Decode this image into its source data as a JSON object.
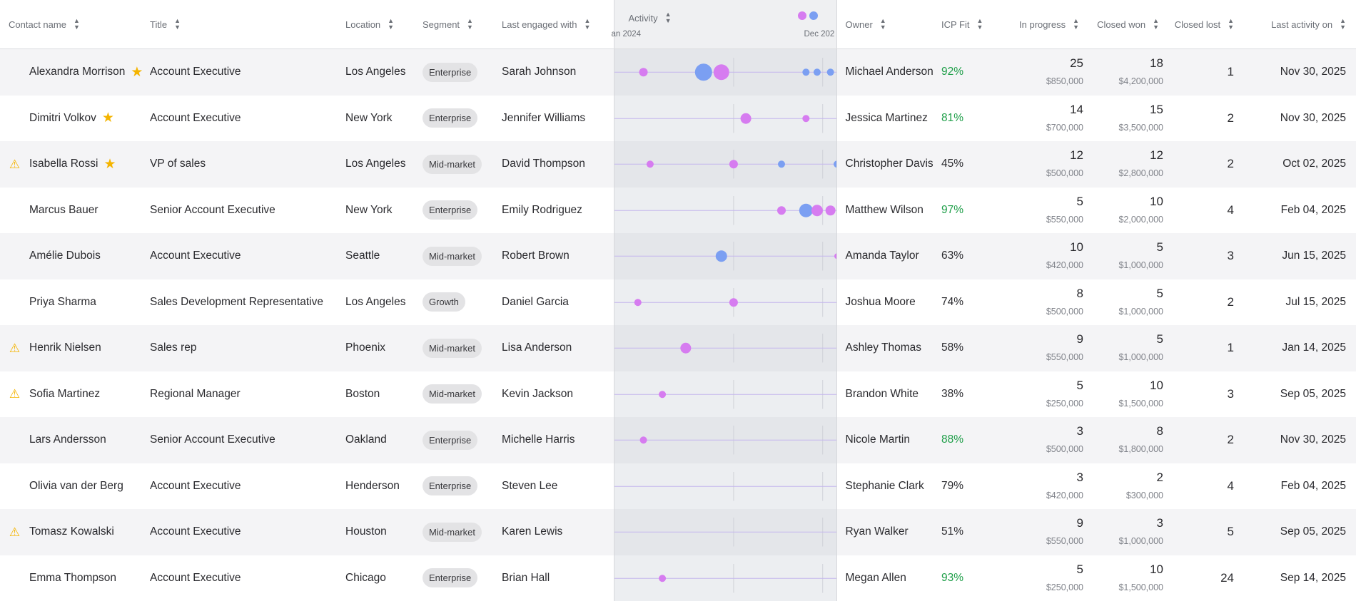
{
  "headers": {
    "contact_name": "Contact name",
    "title": "Title",
    "location": "Location",
    "segment": "Segment",
    "last_engaged": "Last engaged with",
    "activity": "Activity",
    "activity_start": "an 2024",
    "activity_end": "Dec 202",
    "owner": "Owner",
    "icp_fit": "ICP Fit",
    "in_progress": "In progress",
    "closed_won": "Closed won",
    "closed_lost": "Closed lost",
    "last_activity_on": "Last activity on"
  },
  "colors": {
    "purple": "#d67cf0",
    "blue": "#7b9ff2",
    "icp_good": "#1e9e48",
    "warning": "#f4b400",
    "star": "#f4b400"
  },
  "icons": {
    "sort": "sort-icon",
    "warning": "warning-icon",
    "star": "star-icon"
  },
  "rows": [
    {
      "name": "Alexandra Morrison",
      "warning": false,
      "starred": true,
      "title": "Account Executive",
      "location": "Los Angeles",
      "segment": "Enterprise",
      "last_engaged": "Sarah Johnson",
      "owner": "Michael Anderson",
      "icp": "92%",
      "icp_good": true,
      "in_progress": "25",
      "in_progress_amt": "$850,000",
      "closed_won": "18",
      "closed_won_amt": "$4,200,000",
      "closed_lost": "1",
      "last_activity": "Nov 30, 2025",
      "activity": [
        {
          "t": 0.13,
          "s": 6,
          "c": "purple"
        },
        {
          "t": 0.4,
          "s": 12,
          "c": "blue"
        },
        {
          "t": 0.48,
          "s": 11,
          "c": "purple"
        },
        {
          "t": 0.86,
          "s": 5,
          "c": "blue"
        },
        {
          "t": 0.91,
          "s": 5,
          "c": "blue"
        },
        {
          "t": 0.97,
          "s": 5,
          "c": "blue"
        }
      ]
    },
    {
      "name": "Dimitri Volkov",
      "warning": false,
      "starred": true,
      "title": "Account Executive",
      "location": "New York",
      "segment": "Enterprise",
      "last_engaged": "Jennifer Williams",
      "owner": "Jessica Martinez",
      "icp": "81%",
      "icp_good": true,
      "in_progress": "14",
      "in_progress_amt": "$700,000",
      "closed_won": "15",
      "closed_won_amt": "$3,500,000",
      "closed_lost": "2",
      "last_activity": "Nov 30, 2025",
      "activity": [
        {
          "t": 0.59,
          "s": 7.5,
          "c": "purple"
        },
        {
          "t": 0.86,
          "s": 5,
          "c": "purple"
        }
      ]
    },
    {
      "name": "Isabella Rossi",
      "warning": true,
      "starred": true,
      "title": "VP of sales",
      "location": "Los Angeles",
      "segment": "Mid-market",
      "last_engaged": "David Thompson",
      "owner": "Christopher Davis",
      "icp": "45%",
      "icp_good": false,
      "in_progress": "12",
      "in_progress_amt": "$500,000",
      "closed_won": "12",
      "closed_won_amt": "$2,800,000",
      "closed_lost": "2",
      "last_activity": "Oct 02, 2025",
      "activity": [
        {
          "t": 0.16,
          "s": 5,
          "c": "purple"
        },
        {
          "t": 0.535,
          "s": 6,
          "c": "purple"
        },
        {
          "t": 0.75,
          "s": 5,
          "c": "blue"
        },
        {
          "t": 1.0,
          "s": 5,
          "c": "blue"
        }
      ]
    },
    {
      "name": "Marcus Bauer",
      "warning": false,
      "starred": false,
      "title": "Senior Account Executive",
      "location": "New York",
      "segment": "Enterprise",
      "last_engaged": "Emily Rodriguez",
      "owner": "Matthew Wilson",
      "icp": "97%",
      "icp_good": true,
      "in_progress": "5",
      "in_progress_amt": "$550,000",
      "closed_won": "10",
      "closed_won_amt": "$2,000,000",
      "closed_lost": "4",
      "last_activity": "Feb 04, 2025",
      "activity": [
        {
          "t": 0.75,
          "s": 6,
          "c": "purple"
        },
        {
          "t": 0.86,
          "s": 9.5,
          "c": "blue"
        },
        {
          "t": 0.91,
          "s": 8,
          "c": "purple"
        },
        {
          "t": 0.97,
          "s": 7,
          "c": "purple"
        }
      ]
    },
    {
      "name": "Amélie Dubois",
      "warning": false,
      "starred": false,
      "title": "Account Executive",
      "location": "Seattle",
      "segment": "Mid-market",
      "last_engaged": "Robert Brown",
      "owner": "Amanda Taylor",
      "icp": "63%",
      "icp_good": false,
      "in_progress": "10",
      "in_progress_amt": "$420,000",
      "closed_won": "5",
      "closed_won_amt": "$1,000,000",
      "closed_lost": "3",
      "last_activity": "Jun 15, 2025",
      "activity": [
        {
          "t": 0.48,
          "s": 8,
          "c": "blue"
        },
        {
          "t": 1.0,
          "s": 4,
          "c": "purple"
        }
      ]
    },
    {
      "name": "Priya Sharma",
      "warning": false,
      "starred": false,
      "title": "Sales Development Representative",
      "location": "Los Angeles",
      "segment": "Growth",
      "last_engaged": "Daniel Garcia",
      "owner": "Joshua Moore",
      "icp": "74%",
      "icp_good": false,
      "in_progress": "8",
      "in_progress_amt": "$500,000",
      "closed_won": "5",
      "closed_won_amt": "$1,000,000",
      "closed_lost": "2",
      "last_activity": "Jul 15, 2025",
      "activity": [
        {
          "t": 0.105,
          "s": 5,
          "c": "purple"
        },
        {
          "t": 0.535,
          "s": 6,
          "c": "purple"
        }
      ]
    },
    {
      "name": "Henrik Nielsen",
      "warning": true,
      "starred": false,
      "title": "Sales rep",
      "location": "Phoenix",
      "segment": "Mid-market",
      "last_engaged": "Lisa Anderson",
      "owner": "Ashley Thomas",
      "icp": "58%",
      "icp_good": false,
      "in_progress": "9",
      "in_progress_amt": "$550,000",
      "closed_won": "5",
      "closed_won_amt": "$1,000,000",
      "closed_lost": "1",
      "last_activity": "Jan 14, 2025",
      "activity": [
        {
          "t": 0.32,
          "s": 7.5,
          "c": "purple"
        }
      ]
    },
    {
      "name": "Sofia Martinez",
      "warning": true,
      "starred": false,
      "title": "Regional Manager",
      "location": "Boston",
      "segment": "Mid-market",
      "last_engaged": "Kevin Jackson",
      "owner": "Brandon White",
      "icp": "38%",
      "icp_good": false,
      "in_progress": "5",
      "in_progress_amt": "$250,000",
      "closed_won": "10",
      "closed_won_amt": "$1,500,000",
      "closed_lost": "3",
      "last_activity": "Sep 05, 2025",
      "activity": [
        {
          "t": 0.215,
          "s": 5,
          "c": "purple"
        }
      ]
    },
    {
      "name": "Lars Andersson",
      "warning": false,
      "starred": false,
      "title": "Senior Account Executive",
      "location": "Oakland",
      "segment": "Enterprise",
      "last_engaged": "Michelle Harris",
      "owner": "Nicole Martin",
      "icp": "88%",
      "icp_good": true,
      "in_progress": "3",
      "in_progress_amt": "$500,000",
      "closed_won": "8",
      "closed_won_amt": "$1,800,000",
      "closed_lost": "2",
      "last_activity": "Nov 30, 2025",
      "activity": [
        {
          "t": 0.13,
          "s": 5,
          "c": "purple"
        }
      ]
    },
    {
      "name": "Olivia van der Berg",
      "warning": false,
      "starred": false,
      "title": "Account Executive",
      "location": "Henderson",
      "segment": "Enterprise",
      "last_engaged": "Steven Lee",
      "owner": "Stephanie Clark",
      "icp": "79%",
      "icp_good": false,
      "in_progress": "3",
      "in_progress_amt": "$420,000",
      "closed_won": "2",
      "closed_won_amt": "$300,000",
      "closed_lost": "4",
      "last_activity": "Feb 04, 2025",
      "activity": []
    },
    {
      "name": "Tomasz Kowalski",
      "warning": true,
      "starred": false,
      "title": "Account Executive",
      "location": "Houston",
      "segment": "Mid-market",
      "last_engaged": "Karen Lewis",
      "owner": "Ryan Walker",
      "icp": "51%",
      "icp_good": false,
      "in_progress": "9",
      "in_progress_amt": "$550,000",
      "closed_won": "3",
      "closed_won_amt": "$1,000,000",
      "closed_lost": "5",
      "last_activity": "Sep 05, 2025",
      "activity": []
    },
    {
      "name": "Emma Thompson",
      "warning": false,
      "starred": false,
      "title": "Account Executive",
      "location": "Chicago",
      "segment": "Enterprise",
      "last_engaged": "Brian Hall",
      "owner": "Megan Allen",
      "icp": "93%",
      "icp_good": true,
      "in_progress": "5",
      "in_progress_amt": "$250,000",
      "closed_won": "10",
      "closed_won_amt": "$1,500,000",
      "closed_lost": "24",
      "last_activity": "Sep 14, 2025",
      "activity": [
        {
          "t": 0.215,
          "s": 5,
          "c": "purple"
        }
      ]
    }
  ]
}
